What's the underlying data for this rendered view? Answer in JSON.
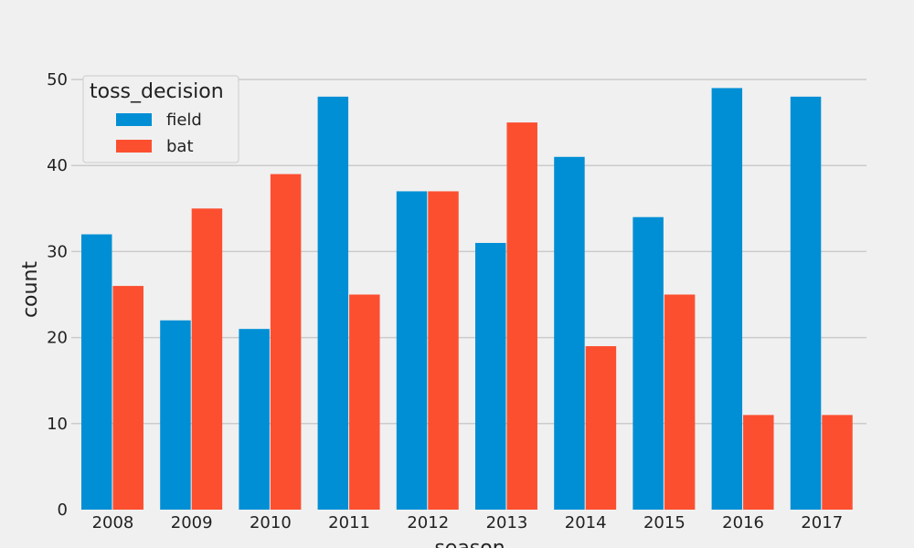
{
  "chart_data": {
    "type": "bar",
    "title": "",
    "xlabel": "season",
    "ylabel": "count",
    "categories": [
      "2008",
      "2009",
      "2010",
      "2011",
      "2012",
      "2013",
      "2014",
      "2015",
      "2016",
      "2017"
    ],
    "series": [
      {
        "name": "field",
        "color": "#008fd5",
        "values": [
          32,
          22,
          21,
          48,
          37,
          31,
          41,
          34,
          49,
          48
        ]
      },
      {
        "name": "bat",
        "color": "#fc4f30",
        "values": [
          26,
          35,
          39,
          25,
          37,
          45,
          19,
          25,
          11,
          11
        ]
      }
    ],
    "ylim": [
      0,
      50
    ],
    "yticks": [
      0,
      10,
      20,
      30,
      40,
      50
    ],
    "grid": true,
    "legend": {
      "title": "toss_decision",
      "placement": "top-left"
    }
  }
}
